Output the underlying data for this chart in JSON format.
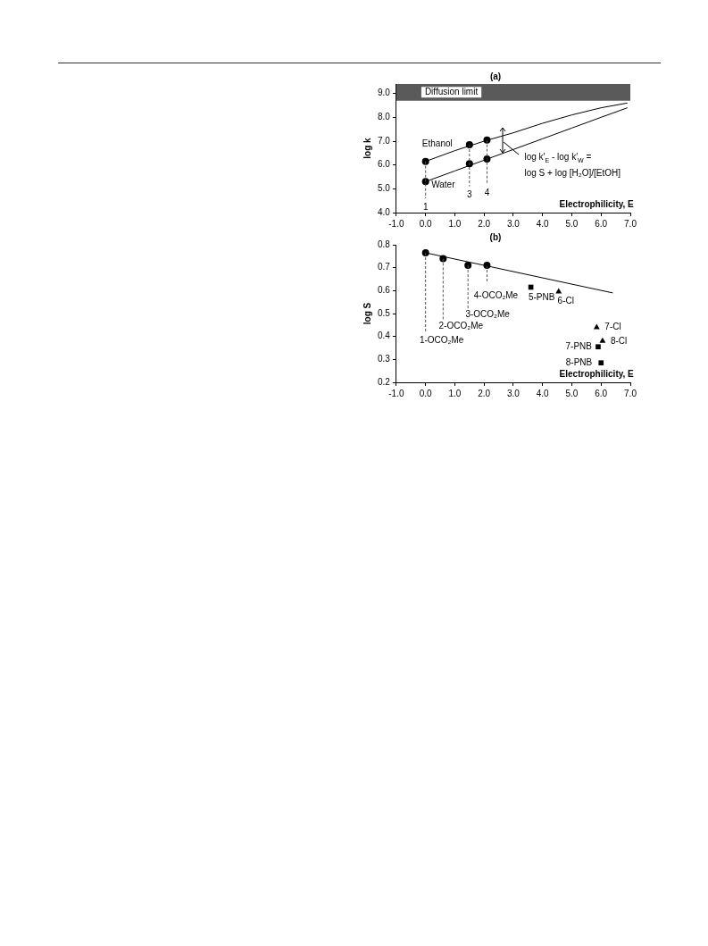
{
  "chart_data": [
    {
      "type": "scatter",
      "title": "(a)",
      "xlabel": "Electrophilicity, E",
      "ylabel": "log k",
      "xlim": [
        -1,
        7
      ],
      "xticks": [
        {
          "value": -1,
          "label": "-1.0"
        },
        {
          "value": 0,
          "label": "0.0"
        },
        {
          "value": 1,
          "label": "1.0"
        },
        {
          "value": 2,
          "label": "2.0"
        },
        {
          "value": 3,
          "label": "3.0"
        },
        {
          "value": 4,
          "label": "4.0"
        },
        {
          "value": 5,
          "label": "5.0"
        },
        {
          "value": 6,
          "label": "6.0"
        },
        {
          "value": 7,
          "label": "7.0"
        }
      ],
      "ylim": [
        4,
        9.4
      ],
      "yticks": [
        {
          "value": 4,
          "label": "4.0"
        },
        {
          "value": 5,
          "label": "5.0"
        },
        {
          "value": 6,
          "label": "6.0"
        },
        {
          "value": 7,
          "label": "7.0"
        },
        {
          "value": 8,
          "label": "8.0"
        },
        {
          "value": 9,
          "label": "9.0"
        }
      ],
      "grid": false,
      "legend": false,
      "bands": [
        {
          "axis": "y",
          "from": 8.7,
          "to": 9.4,
          "label": "Diffusion limit",
          "color": "#5a5a5a"
        }
      ],
      "series": [
        {
          "type": "line",
          "color": "#000000",
          "marker": "none",
          "line_style": "solid",
          "x": [
            0,
            1,
            2,
            3,
            4,
            5,
            6,
            6.9
          ],
          "values": [
            6.15,
            6.6,
            7.0,
            7.35,
            7.75,
            8.1,
            8.4,
            8.6
          ]
        },
        {
          "type": "line",
          "color": "#000000",
          "marker": "none",
          "line_style": "solid",
          "x": [
            0,
            1,
            2,
            3,
            4,
            5,
            6,
            6.9
          ],
          "values": [
            5.3,
            5.75,
            6.2,
            6.65,
            7.1,
            7.55,
            8.0,
            8.4
          ]
        },
        {
          "type": "line",
          "color": "#555555",
          "marker": "none",
          "line_style": "dashed",
          "x": [
            0,
            0
          ],
          "values": [
            6.15,
            4.6
          ]
        },
        {
          "type": "line",
          "color": "#555555",
          "marker": "none",
          "line_style": "dashed",
          "x": [
            1.5,
            1.5
          ],
          "values": [
            6.85,
            5.1
          ]
        },
        {
          "type": "line",
          "color": "#555555",
          "marker": "none",
          "line_style": "dashed",
          "x": [
            2.1,
            2.1
          ],
          "values": [
            7.05,
            5.2
          ]
        },
        {
          "color": "#000000",
          "marker": "circle",
          "x": [
            0,
            1.5,
            2.1
          ],
          "values": [
            6.15,
            6.85,
            7.05
          ]
        },
        {
          "color": "#000000",
          "marker": "circle",
          "x": [
            0,
            1.5,
            2.1
          ],
          "values": [
            5.3,
            6.05,
            6.25
          ]
        }
      ],
      "annotations": [
        "Ethanol",
        "Water",
        {
          "text": "1",
          "x": 0,
          "y": 4.6
        },
        {
          "text": "3",
          "x": 1.5,
          "y": 5.1
        },
        {
          "text": "4",
          "x": 2.1,
          "y": 5.2
        },
        {
          "text": "log k′$_{E}$ - log k′$_{W}$ =\nlog S + log [H₂O]/[EtOH]",
          "x": 2.65,
          "y": 7.05
        }
      ]
    },
    {
      "type": "scatter",
      "title": "(b)",
      "xlabel": "Electrophilicity, E",
      "ylabel": "log S",
      "xlim": [
        -1,
        7
      ],
      "xticks": [
        {
          "value": -1,
          "label": "-1.0"
        },
        {
          "value": 0,
          "label": "0.0"
        },
        {
          "value": 1,
          "label": "1.0"
        },
        {
          "value": 2,
          "label": "2.0"
        },
        {
          "value": 3,
          "label": "3.0"
        },
        {
          "value": 4,
          "label": "4.0"
        },
        {
          "value": 5,
          "label": "5.0"
        },
        {
          "value": 6,
          "label": "6.0"
        },
        {
          "value": 7,
          "label": "7.0"
        }
      ],
      "ylim": [
        0.2,
        0.8
      ],
      "yticks": [
        0.2,
        0.3,
        0.4,
        0.5,
        0.6,
        0.7,
        0.8
      ],
      "grid": false,
      "legend": false,
      "series": [
        {
          "type": "line",
          "color": "#000000",
          "marker": "none",
          "line_style": "solid",
          "x": [
            0,
            6.4
          ],
          "values": [
            0.765,
            0.59
          ]
        },
        {
          "type": "line",
          "color": "#555555",
          "marker": "none",
          "line_style": "dashed",
          "x": [
            0,
            0
          ],
          "values": [
            0.765,
            0.42
          ]
        },
        {
          "type": "line",
          "color": "#555555",
          "marker": "none",
          "line_style": "dashed",
          "x": [
            0.6,
            0.6
          ],
          "values": [
            0.74,
            0.47
          ]
        },
        {
          "type": "line",
          "color": "#555555",
          "marker": "none",
          "line_style": "dashed",
          "x": [
            1.45,
            1.45
          ],
          "values": [
            0.71,
            0.52
          ]
        },
        {
          "type": "line",
          "color": "#555555",
          "marker": "none",
          "line_style": "dashed",
          "x": [
            2.1,
            2.1
          ],
          "values": [
            0.71,
            0.64
          ]
        },
        {
          "color": "#000000",
          "marker": "circle",
          "x": [
            0,
            0.6,
            1.45,
            2.1
          ],
          "values": [
            0.765,
            0.74,
            0.71,
            0.71
          ]
        },
        {
          "color": "#000000",
          "marker": "square",
          "x": [
            3.6,
            5.9,
            6.0
          ],
          "values": [
            0.615,
            0.355,
            0.285
          ]
        },
        {
          "color": "#000000",
          "marker": "triangle",
          "x": [
            4.55,
            5.85,
            6.05
          ],
          "values": [
            0.595,
            0.44,
            0.38
          ]
        }
      ],
      "annotations": [
        {
          "text": "1-OCO₂Me",
          "x": 0,
          "y": 0.42
        },
        {
          "text": "2-OCO₂Me",
          "x": 0.6,
          "y": 0.47
        },
        {
          "text": "3-OCO₂Me",
          "x": 1.45,
          "y": 0.52
        },
        {
          "text": "4-OCO₂Me",
          "x": 2.1,
          "y": 0.64
        },
        {
          "text": "5-PNB",
          "x": 3.6,
          "y": 0.615
        },
        {
          "text": "6-Cl",
          "x": 4.55,
          "y": 0.595
        },
        {
          "text": "7-Cl",
          "x": 5.85,
          "y": 0.44
        },
        {
          "text": "8-Cl",
          "x": 6.05,
          "y": 0.38
        },
        {
          "text": "7-PNB",
          "x": 5.9,
          "y": 0.355
        },
        {
          "text": "8-PNB",
          "x": 6.0,
          "y": 0.285
        }
      ]
    }
  ]
}
